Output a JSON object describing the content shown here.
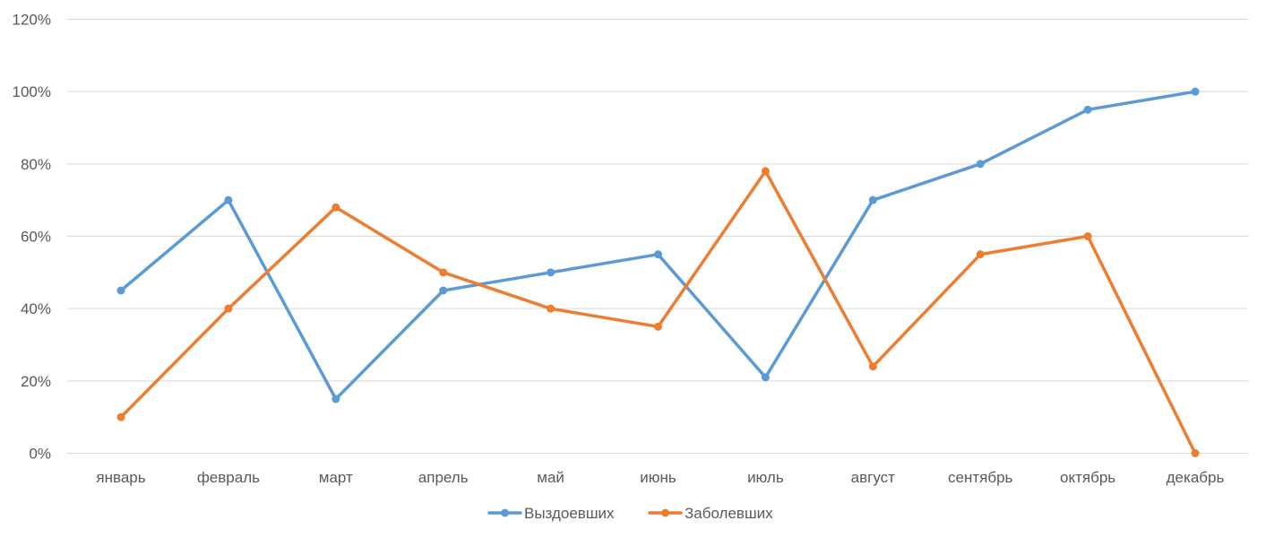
{
  "chart_data": {
    "type": "line",
    "title": "",
    "xlabel": "",
    "ylabel": "",
    "categories": [
      "январь",
      "февраль",
      "март",
      "апрель",
      "май",
      "июнь",
      "июль",
      "август",
      "сентябрь",
      "октябрь",
      "декабрь"
    ],
    "ylim": [
      0,
      120
    ],
    "y_ticks": [
      0,
      20,
      40,
      60,
      80,
      100,
      120
    ],
    "y_tick_format": "percent",
    "grid": true,
    "legend_position": "bottom",
    "series": [
      {
        "name": "Выздоевших",
        "color": "#5b9bd5",
        "values": [
          45,
          70,
          15,
          45,
          50,
          55,
          21,
          70,
          80,
          95,
          100
        ]
      },
      {
        "name": "Заболевших",
        "color": "#ed7d31",
        "values": [
          10,
          40,
          68,
          50,
          40,
          35,
          78,
          24,
          55,
          60,
          0
        ]
      }
    ]
  }
}
